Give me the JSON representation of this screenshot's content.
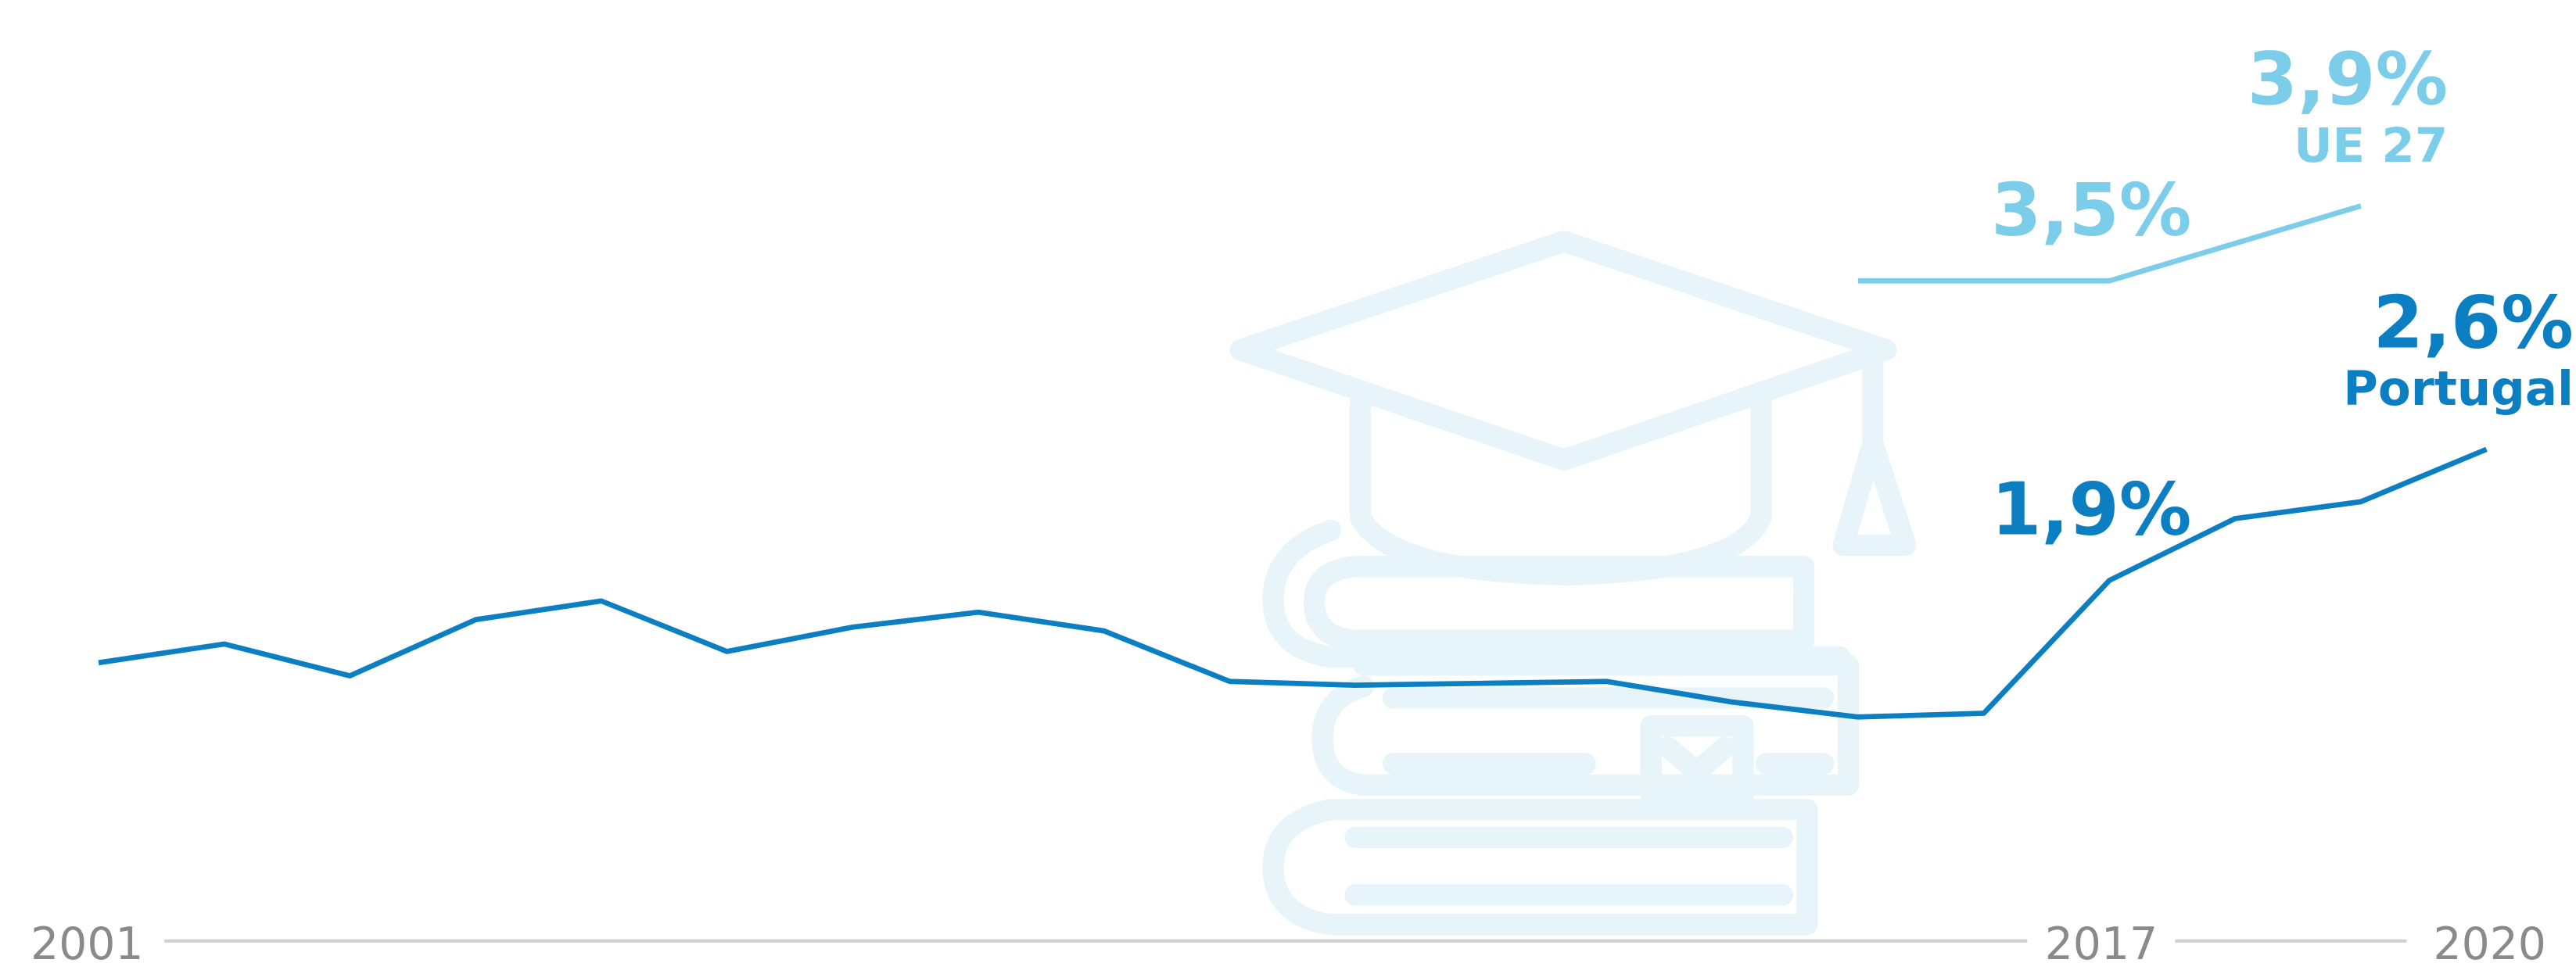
{
  "chart_data": {
    "type": "line",
    "categories": [
      "2001",
      null,
      null,
      null,
      null,
      null,
      null,
      null,
      null,
      null,
      null,
      null,
      null,
      null,
      null,
      null,
      "2017",
      null,
      null,
      "2020"
    ],
    "series": [
      {
        "name": "Portugal",
        "color": "#0b7fc1",
        "values": [
          1.46,
          1.56,
          1.39,
          1.69,
          1.79,
          1.52,
          1.65,
          1.73,
          1.63,
          1.36,
          1.34,
          1.35,
          1.36,
          1.25,
          1.17,
          1.19,
          1.9,
          2.23,
          2.32,
          2.6
        ],
        "value_labels": [
          null,
          null,
          null,
          null,
          null,
          null,
          null,
          null,
          null,
          null,
          null,
          null,
          null,
          null,
          null,
          null,
          "1,9%",
          null,
          null,
          "2,6%"
        ]
      },
      {
        "name": "UE 27",
        "color": "#7ccdea",
        "values": [
          null,
          null,
          null,
          null,
          null,
          null,
          null,
          null,
          null,
          null,
          null,
          null,
          null,
          null,
          3.5,
          3.5,
          3.5,
          3.7,
          3.9,
          null
        ],
        "value_labels": [
          null,
          null,
          null,
          null,
          null,
          null,
          null,
          null,
          null,
          null,
          null,
          null,
          null,
          null,
          null,
          null,
          "3,5%",
          null,
          "3,9%",
          null
        ]
      }
    ],
    "ylim": [
      0,
      5
    ]
  }
}
